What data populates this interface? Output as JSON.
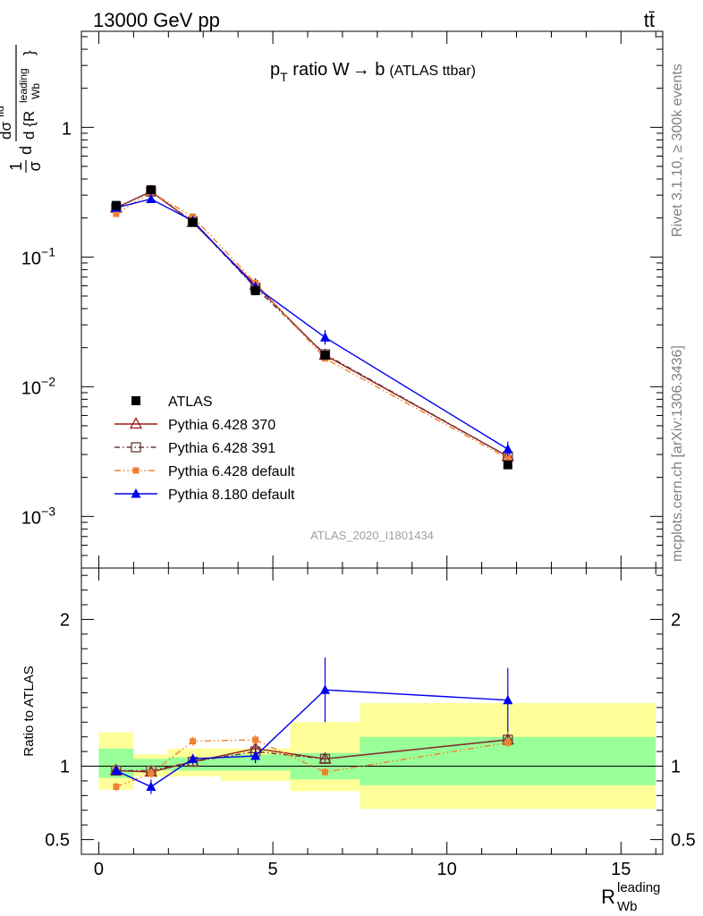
{
  "header": {
    "left": "13000 GeV pp",
    "right": "tt̄"
  },
  "side_labels": {
    "rivet": "Rivet 3.1.10, ≥ 300k events",
    "site": "mcplots.cern.ch [arXiv:1306.3436]"
  },
  "colors": {
    "ATLAS": "#000000",
    "Pythia 6.428 370": "#9b1c1c",
    "Pythia 6.428 391": "#6b3a3a",
    "Pythia 6.428 default": "#f08030",
    "Pythia 8.180 default": "#0000ee",
    "band_inner": "#99ff99",
    "band_outer": "#ffff99"
  },
  "chart_data": [
    {
      "type": "line",
      "panel": "main",
      "title": "p_T ratio W → b (ATLAS ttbar)",
      "title_parts": {
        "p": "p",
        "sub": "T",
        "rest": " ratio W",
        "arrow": "→",
        "b": " b",
        "tag": "(ATLAS ttbar)"
      },
      "ylabel": "1/σ dσ^{fid}/d {R_{Wb}^{leading}}",
      "ylabel_parts": {
        "frac1_num": "1",
        "frac1_den": "σ",
        "d": "d",
        "num": "dσ",
        "num_sup": "fid",
        "den": "d {R",
        "den_sup": "leading",
        "den_sub": "Wb",
        "close": "}"
      },
      "yscale": "log",
      "xlim": [
        -0.5,
        16.2
      ],
      "ylim": [
        0.0004,
        5.5
      ],
      "ytick_labels": [
        "10",
        "10",
        "1",
        "10",
        "10"
      ],
      "ytick_exponents": [
        "−3",
        "−2",
        "",
        "−1",
        ""
      ],
      "ytick_values": [
        0.001,
        0.01,
        1,
        0.1,
        null
      ],
      "watermark": "ATLAS_2020_I1801434",
      "legend_position": "lower-left",
      "x": [
        0.5,
        1.5,
        2.7,
        4.5,
        6.5,
        11.75
      ],
      "series": [
        {
          "name": "ATLAS",
          "marker": "square",
          "values": [
            0.25,
            0.33,
            0.185,
            0.055,
            0.0175,
            0.0025
          ]
        },
        {
          "name": "Pythia 6.428 370",
          "marker": "triangle-open",
          "values": [
            0.24,
            0.32,
            0.185,
            0.061,
            0.0175,
            0.0029
          ]
        },
        {
          "name": "Pythia 6.428 391",
          "marker": "square-open",
          "values": [
            0.24,
            0.32,
            0.188,
            0.058,
            0.0178,
            0.0029
          ]
        },
        {
          "name": "Pythia 6.428 default",
          "marker": "square-small",
          "values": [
            0.215,
            0.315,
            0.205,
            0.063,
            0.0165,
            0.0028
          ]
        },
        {
          "name": "Pythia 8.180 default",
          "marker": "triangle",
          "values": [
            0.24,
            0.28,
            0.19,
            0.059,
            0.024,
            0.0033
          ]
        }
      ]
    },
    {
      "type": "line",
      "panel": "ratio",
      "xlabel": "R_{Wb}^{leading}",
      "xlabel_parts": {
        "main": "R",
        "sup": "leading",
        "sub": "Wb"
      },
      "ylabel": "Ratio to ATLAS",
      "xlim": [
        -0.5,
        16.2
      ],
      "ylim": [
        0.4,
        2.35
      ],
      "xticks": [
        "0",
        "5",
        "10",
        "15"
      ],
      "yticks": [
        "0.5",
        "1",
        "2"
      ],
      "x": [
        0.5,
        1.5,
        2.7,
        4.5,
        6.5,
        11.75
      ],
      "bins": [
        [
          0,
          1
        ],
        [
          1,
          2
        ],
        [
          2,
          3.5
        ],
        [
          3.5,
          5.5
        ],
        [
          5.5,
          7.5
        ],
        [
          7.5,
          16
        ]
      ],
      "band_inner": [
        [
          0.92,
          1.12
        ],
        [
          0.97,
          1.05
        ],
        [
          0.97,
          1.06
        ],
        [
          0.97,
          1.08
        ],
        [
          0.91,
          1.09
        ],
        [
          0.87,
          1.2
        ]
      ],
      "band_outer": [
        [
          0.84,
          1.23
        ],
        [
          0.93,
          1.08
        ],
        [
          0.93,
          1.12
        ],
        [
          0.9,
          1.12
        ],
        [
          0.83,
          1.3
        ],
        [
          0.71,
          1.43
        ]
      ],
      "series": [
        {
          "name": "Pythia 6.428 370",
          "values": [
            0.97,
            0.96,
            1.03,
            1.12,
            1.05,
            1.18
          ]
        },
        {
          "name": "Pythia 6.428 391",
          "values": [
            0.97,
            0.97,
            1.03,
            1.1,
            1.05,
            1.18
          ]
        },
        {
          "name": "Pythia 6.428 default",
          "values": [
            0.86,
            0.95,
            1.17,
            1.18,
            0.96,
            1.16
          ]
        },
        {
          "name": "Pythia 8.180 default",
          "values": [
            0.97,
            0.86,
            1.05,
            1.07,
            1.52,
            1.45
          ]
        }
      ]
    }
  ]
}
